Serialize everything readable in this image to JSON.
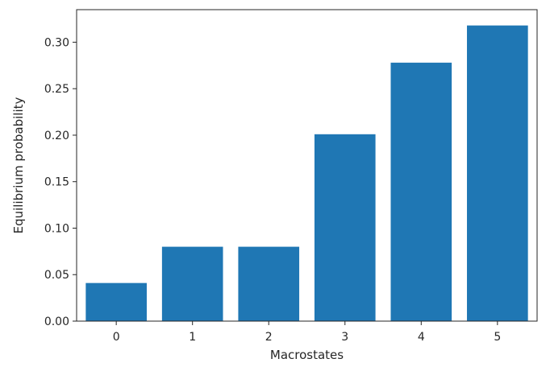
{
  "chart_data": {
    "type": "bar",
    "title": "",
    "xlabel": "Macrostates",
    "ylabel": "Equilibrium probability",
    "categories": [
      "0",
      "1",
      "2",
      "3",
      "4",
      "5"
    ],
    "values": [
      0.041,
      0.08,
      0.08,
      0.201,
      0.278,
      0.318
    ],
    "ylim": [
      0,
      0.335
    ],
    "yticks": [
      0.0,
      0.05,
      0.1,
      0.15,
      0.2,
      0.25,
      0.3
    ],
    "ytick_labels": [
      "0.00",
      "0.05",
      "0.10",
      "0.15",
      "0.20",
      "0.25",
      "0.30"
    ],
    "grid": false,
    "legend": "none",
    "colors": {
      "bar": "#1f77b4",
      "axis": "#262626",
      "background": "#ffffff"
    }
  }
}
